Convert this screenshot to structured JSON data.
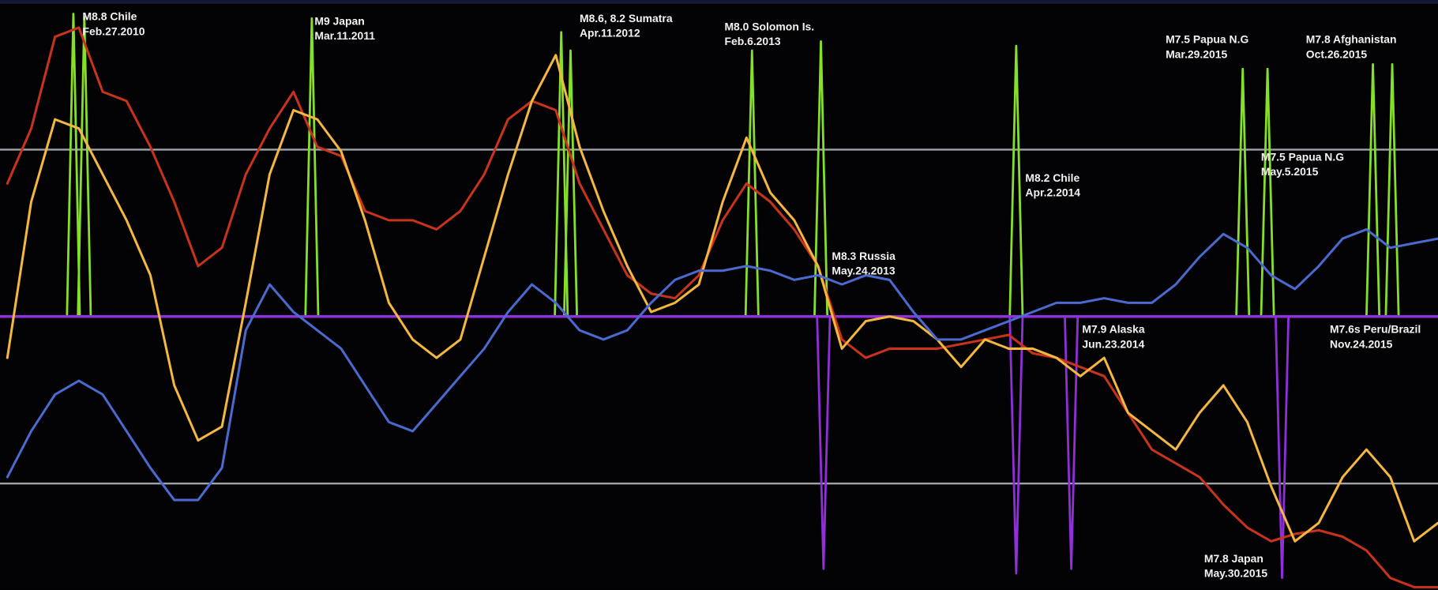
{
  "chart_data": {
    "type": "line",
    "x": [
      0,
      1,
      2,
      3,
      4,
      5,
      6,
      7,
      8,
      9,
      10,
      11,
      12,
      13,
      14,
      15,
      16,
      17,
      18,
      19,
      20,
      21,
      22,
      23,
      24,
      25,
      26,
      27,
      28,
      29,
      30,
      31,
      32,
      33,
      34,
      35,
      36,
      37,
      38,
      39,
      40,
      41,
      42,
      43,
      44,
      45,
      46,
      47,
      48,
      49,
      50,
      51,
      52,
      53,
      54,
      55,
      56,
      57,
      58,
      59,
      60
    ],
    "xlim": [
      0,
      60
    ],
    "ylim": [
      0,
      643
    ],
    "series": [
      {
        "color": "#c9321c",
        "values": [
          443,
          503,
          603,
          613,
          543,
          533,
          483,
          423,
          353,
          373,
          453,
          503,
          543,
          483,
          473,
          413,
          403,
          403,
          393,
          413,
          453,
          513,
          533,
          523,
          443,
          393,
          343,
          323,
          318,
          343,
          403,
          443,
          423,
          393,
          353,
          273,
          253,
          263,
          263,
          263,
          268,
          273,
          278,
          258,
          253,
          243,
          233,
          193,
          153,
          138,
          123,
          93,
          68,
          53,
          61,
          65,
          58,
          43,
          13,
          3,
          3
        ]
      },
      {
        "color": "#f4b740",
        "values": [
          253,
          423,
          513,
          503,
          453,
          403,
          343,
          223,
          163,
          178,
          313,
          453,
          523,
          513,
          478,
          403,
          313,
          273,
          253,
          273,
          363,
          453,
          533,
          583,
          483,
          413,
          353,
          303,
          313,
          333,
          423,
          493,
          433,
          403,
          353,
          263,
          293,
          298,
          293,
          273,
          243,
          273,
          263,
          263,
          253,
          233,
          253,
          193,
          173,
          153,
          193,
          223,
          183,
          113,
          53,
          73,
          123,
          153,
          123,
          53,
          73
        ]
      },
      {
        "color": "#4a6ad0",
        "values": [
          123,
          173,
          213,
          228,
          213,
          173,
          133,
          98,
          98,
          133,
          283,
          333,
          303,
          283,
          263,
          223,
          183,
          173,
          203,
          233,
          263,
          303,
          333,
          313,
          283,
          273,
          283,
          313,
          338,
          348,
          348,
          353,
          348,
          338,
          343,
          333,
          343,
          338,
          303,
          273,
          273,
          283,
          293,
          303,
          313,
          313,
          318,
          313,
          313,
          333,
          363,
          388,
          373,
          343,
          328,
          353,
          383,
          393,
          373,
          378,
          383
        ]
      }
    ],
    "reference_lines": [
      480,
      116
    ],
    "reference_color": "#b8c2c6",
    "baseline": 298,
    "baseline_color": "#8f2fe0",
    "spikes": [
      {
        "x": 2.77,
        "value": 628,
        "color": "#86e02a"
      },
      {
        "x": 3.23,
        "value": 625,
        "color": "#86e02a"
      },
      {
        "x": 12.77,
        "value": 623,
        "color": "#86e02a"
      },
      {
        "x": 23.23,
        "value": 608,
        "color": "#86e02a"
      },
      {
        "x": 23.62,
        "value": 588,
        "color": "#86e02a"
      },
      {
        "x": 31.23,
        "value": 588,
        "color": "#86e02a"
      },
      {
        "x": 34.12,
        "value": 598,
        "color": "#86e02a"
      },
      {
        "x": 42.31,
        "value": 593,
        "color": "#86e02a"
      },
      {
        "x": 51.81,
        "value": 568,
        "color": "#86e02a"
      },
      {
        "x": 52.85,
        "value": 568,
        "color": "#86e02a"
      },
      {
        "x": 57.27,
        "value": 573,
        "color": "#86e02a"
      },
      {
        "x": 58.08,
        "value": 573,
        "color": "#86e02a"
      },
      {
        "x": 34.23,
        "value": 23,
        "color": "#9030d8"
      },
      {
        "x": 42.31,
        "value": 18,
        "color": "#9030d8"
      },
      {
        "x": 44.62,
        "value": 23,
        "color": "#9030d8"
      },
      {
        "x": 53.46,
        "value": 13,
        "color": "#9030d8"
      }
    ],
    "annotations": [
      {
        "label": "M8.8 Chile",
        "date": "Feb.27.2010"
      },
      {
        "label": "M9 Japan",
        "date": "Mar.11.2011"
      },
      {
        "label": "M8.6, 8.2 Sumatra",
        "date": "Apr.11.2012"
      },
      {
        "label": "M8.0 Solomon Is.",
        "date": "Feb.6.2013"
      },
      {
        "label": "M8.2 Chile",
        "date": "Apr.2.2014"
      },
      {
        "label": "M7.5 Papua N.G",
        "date": "Mar.29.2015"
      },
      {
        "label": "M7.8 Afghanistan",
        "date": "Oct.26.2015"
      },
      {
        "label": "M7.5 Papua N.G",
        "date": "May.5.2015"
      },
      {
        "label": "M8.3 Russia",
        "date": "May.24.2013"
      },
      {
        "label": "M7.9 Alaska",
        "date": "Jun.23.2014"
      },
      {
        "label": "M7.6s Peru/Brazil",
        "date": "Nov.24.2015"
      },
      {
        "label": "M7.8 Japan",
        "date": "May.30.2015"
      }
    ]
  }
}
